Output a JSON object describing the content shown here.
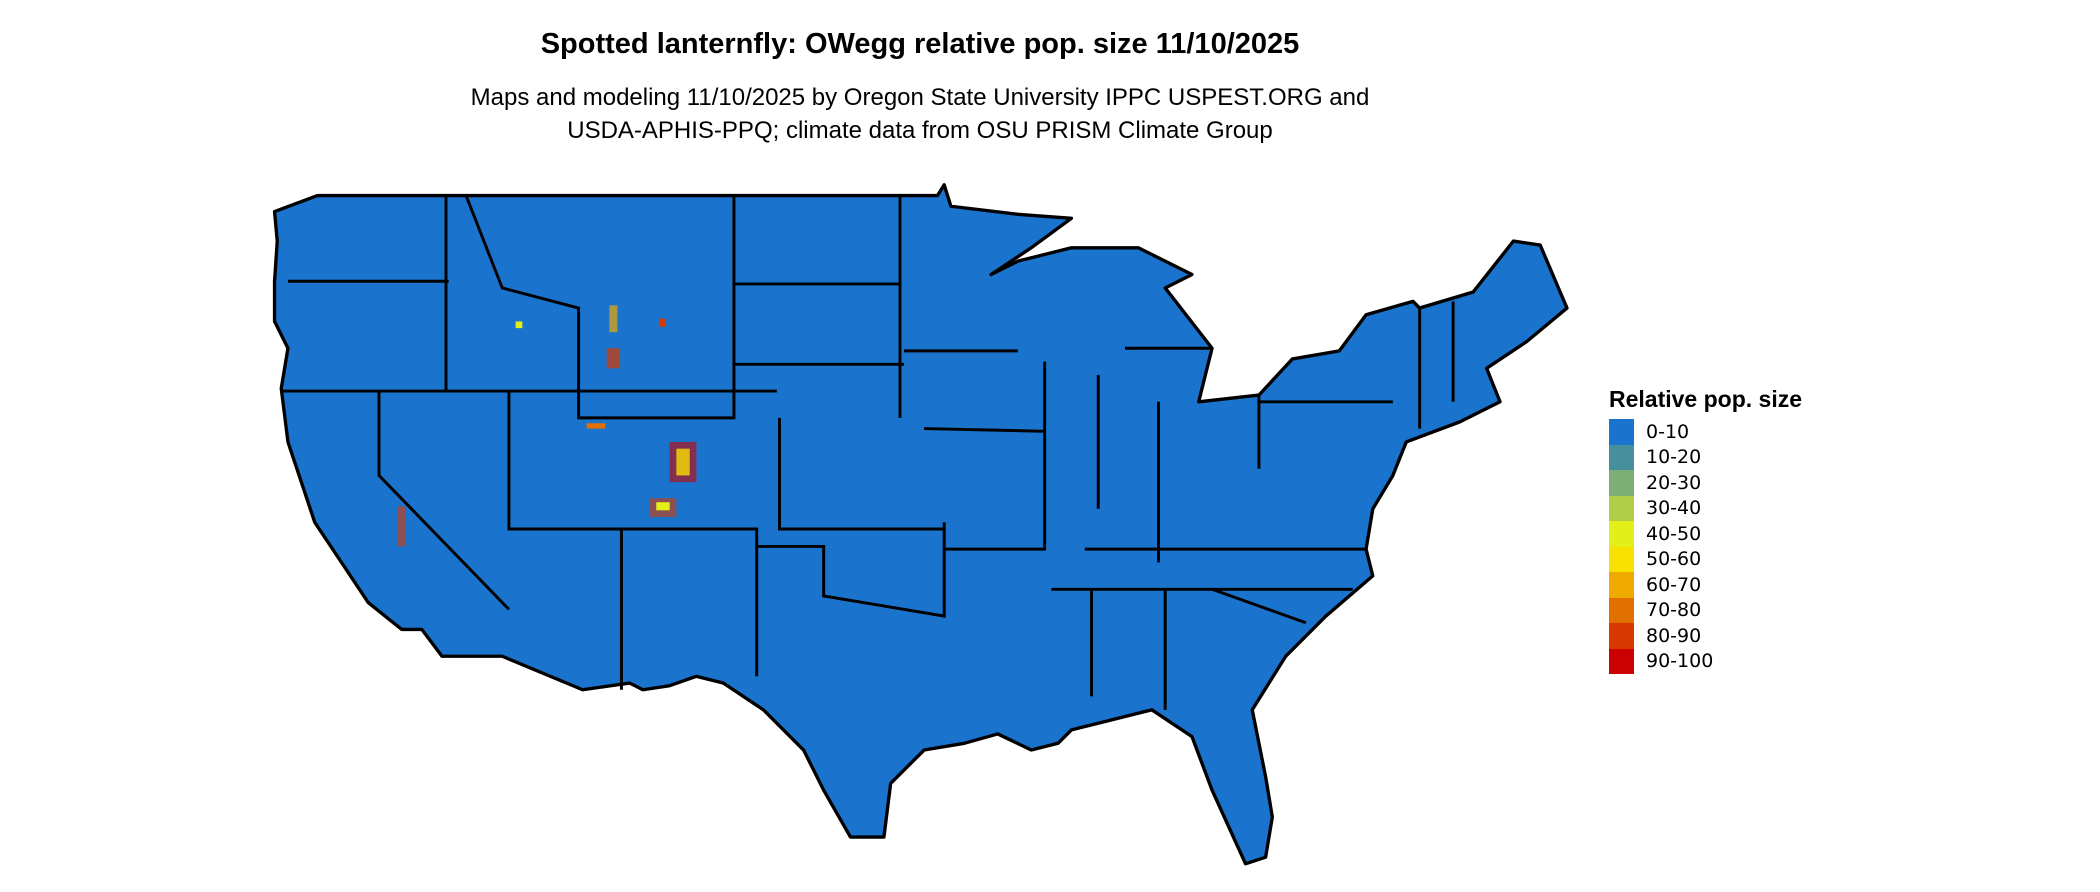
{
  "title": "Spotted lanternfly: OWegg relative pop. size 11/10/2025",
  "subtitle_line1": "Maps and modeling 11/10/2025 by Oregon State University IPPC USPEST.ORG and",
  "subtitle_line2": "USDA-APHIS-PPQ; climate data from OSU PRISM Climate Group",
  "map_region": "Contiguous United States with state boundaries",
  "base_color": "#1a73cc",
  "legend": {
    "title": "Relative pop. size",
    "items": [
      {
        "label": "0-10",
        "color": "#1a73cc"
      },
      {
        "label": "10-20",
        "color": "#478f9c"
      },
      {
        "label": "20-30",
        "color": "#7caf74"
      },
      {
        "label": "30-40",
        "color": "#b0ce48"
      },
      {
        "label": "40-50",
        "color": "#e2ef18"
      },
      {
        "label": "50-60",
        "color": "#f8e000"
      },
      {
        "label": "60-70",
        "color": "#efaa00"
      },
      {
        "label": "70-80",
        "color": "#e27000"
      },
      {
        "label": "80-90",
        "color": "#d83800"
      },
      {
        "label": "90-100",
        "color": "#cc0000"
      }
    ]
  }
}
